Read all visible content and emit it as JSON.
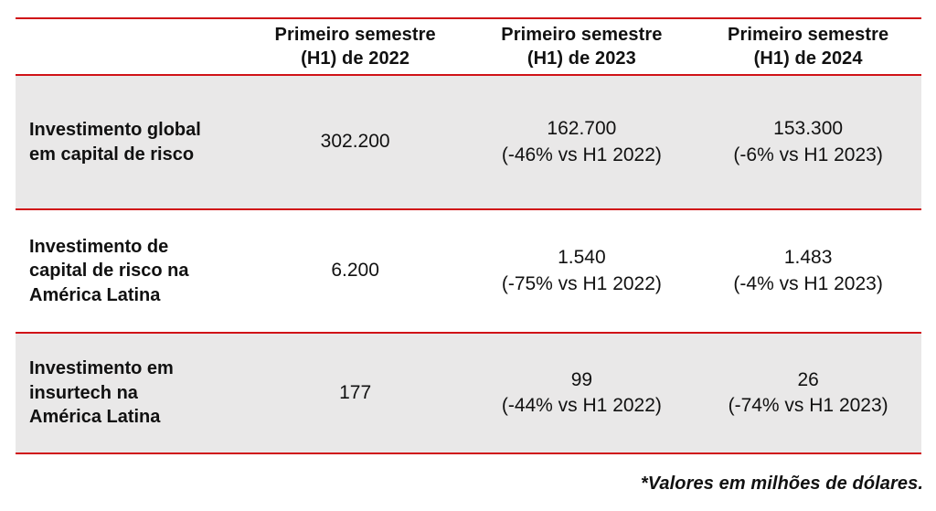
{
  "colors": {
    "accent_red": "#d01217",
    "row_gray": "#e9e8e8",
    "text_black": "#111111"
  },
  "table": {
    "columns": [
      "",
      "Primeiro semestre\n(H1) de 2022",
      "Primeiro semestre\n(H1) de 2023",
      "Primeiro semestre\n(H1) de 2024"
    ],
    "rows": [
      {
        "label": "Investimento global\nem capital de risco",
        "values": [
          "302.200",
          "162.700\n(-46% vs H1 2022)",
          "153.300\n(-6% vs H1 2023)"
        ]
      },
      {
        "label": "Investimento de\ncapital de risco na\nAmérica Latina",
        "values": [
          "6.200",
          "1.540\n(-75% vs H1 2022)",
          "1.483\n(-4% vs H1 2023)"
        ]
      },
      {
        "label": "Investimento em\ninsurtech na\nAmérica Latina",
        "values": [
          "177",
          "99\n(-44% vs H1 2022)",
          "26\n(-74% vs H1 2023)"
        ]
      }
    ]
  },
  "footnote": "*Valores em milhões de dólares.",
  "chart_data": {
    "type": "table",
    "unit": "milhões de dólares",
    "columns": [
      "Primeiro semestre (H1) de 2022",
      "Primeiro semestre (H1) de 2023",
      "Primeiro semestre (H1) de 2024"
    ],
    "rows": [
      {
        "label": "Investimento global em capital de risco",
        "h1_2022": 302200,
        "h1_2023": 162700,
        "h1_2023_change": "-46% vs H1 2022",
        "h1_2024": 153300,
        "h1_2024_change": "-6% vs H1 2023"
      },
      {
        "label": "Investimento de capital de risco na América Latina",
        "h1_2022": 6200,
        "h1_2023": 1540,
        "h1_2023_change": "-75% vs H1 2022",
        "h1_2024": 1483,
        "h1_2024_change": "-4% vs H1 2023"
      },
      {
        "label": "Investimento em insurtech na América Latina",
        "h1_2022": 177,
        "h1_2023": 99,
        "h1_2023_change": "-44% vs H1 2022",
        "h1_2024": 26,
        "h1_2024_change": "-74% vs H1 2023"
      }
    ],
    "footnote": "*Valores em milhões de dólares."
  }
}
